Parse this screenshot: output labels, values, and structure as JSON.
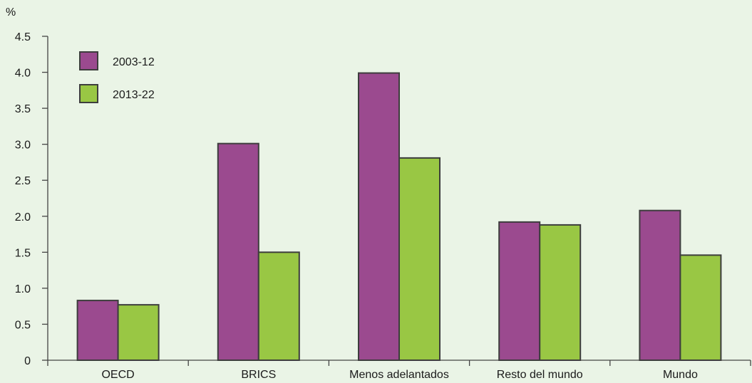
{
  "chart_data": {
    "type": "bar",
    "title": "",
    "xlabel": "",
    "ylabel": "%",
    "ylim": [
      0,
      4.5
    ],
    "yticks": [
      "0",
      "0.5",
      "1.0",
      "1.5",
      "2.0",
      "2.5",
      "3.0",
      "3.5",
      "4.0",
      "4.5"
    ],
    "categories": [
      "OECD",
      "BRICS",
      "Menos adelantados",
      "Resto del mundo",
      "Mundo"
    ],
    "series": [
      {
        "name": "2003-12",
        "color": "#9b4a8f",
        "values": [
          0.83,
          3.01,
          3.99,
          1.92,
          2.08
        ]
      },
      {
        "name": "2013-22",
        "color": "#99c744",
        "values": [
          0.77,
          1.5,
          2.81,
          1.88,
          1.46
        ]
      }
    ],
    "grid": false,
    "legend": "top-left"
  }
}
